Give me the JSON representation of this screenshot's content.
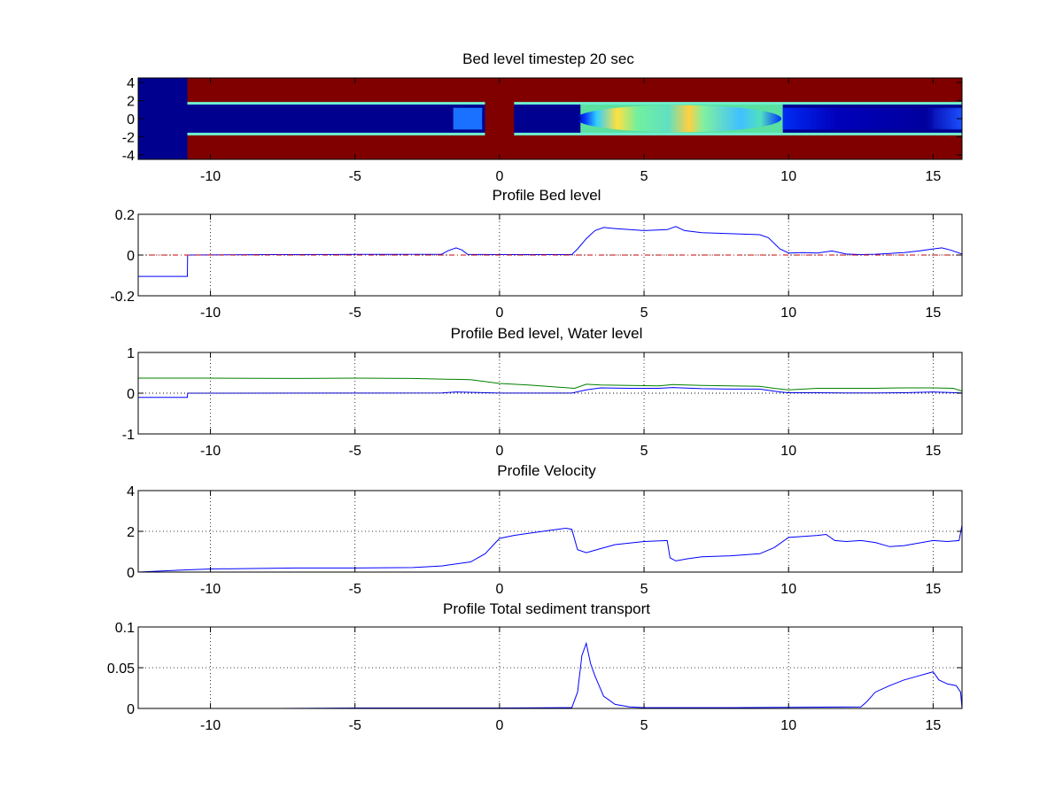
{
  "figure_title": "Bed level timestep 20 sec",
  "chart_data": [
    {
      "type": "heatmap",
      "title": "Bed level timestep 20 sec",
      "xlim": [
        -12.5,
        16
      ],
      "ylim": [
        -4.5,
        4.5
      ],
      "xticks": [
        -10,
        -5,
        0,
        5,
        10,
        15
      ],
      "yticks": [
        4,
        2,
        0,
        -2,
        -4
      ],
      "grid": false,
      "colormap": "jet",
      "description_regions": [
        {
          "x": [
            -12.5,
            -10.8
          ],
          "y": [
            -4.5,
            4.5
          ],
          "level": "low",
          "color": "#00008f"
        },
        {
          "x": [
            -10.8,
            16
          ],
          "y": [
            1.7,
            4.5
          ],
          "level": "high",
          "color": "#800000"
        },
        {
          "x": [
            -10.8,
            16
          ],
          "y": [
            -4.5,
            -1.7
          ],
          "level": "high",
          "color": "#800000"
        },
        {
          "x": [
            -0.5,
            0.5
          ],
          "y": [
            -4.5,
            4.5
          ],
          "level": "high",
          "color": "#800000"
        },
        {
          "x": [
            -10.8,
            16
          ],
          "y": [
            -1.7,
            1.7
          ],
          "level": "low",
          "color": "#00008f"
        },
        {
          "x": [
            2.8,
            9.8
          ],
          "y": [
            -1.6,
            1.6
          ],
          "level": "mid",
          "color": "#5ae0a0"
        },
        {
          "x": [
            -1.6,
            -0.6
          ],
          "y": [
            -1.2,
            1.2
          ],
          "level": "mid-low",
          "color": "#1a70ff"
        },
        {
          "x": [
            15,
            16
          ],
          "y": [
            -1.0,
            1.0
          ],
          "level": "mid-low",
          "color": "#2244ff"
        }
      ]
    },
    {
      "type": "line",
      "title": "Profile Bed level",
      "xlim": [
        -12.5,
        16
      ],
      "ylim": [
        -0.2,
        0.2
      ],
      "xticks": [
        -10,
        -5,
        0,
        5,
        10,
        15
      ],
      "yticks": [
        0.2,
        0,
        -0.2
      ],
      "ytick_labels": [
        "0.2",
        "0",
        "-0.2"
      ],
      "grid": true,
      "series": [
        {
          "color": "#0000ff",
          "style": "solid",
          "x": [
            -12.5,
            -10.8,
            -10.79,
            -8,
            -5,
            -2,
            -1.8,
            -1.5,
            -1.3,
            -1.1,
            0,
            2.5,
            2.7,
            3.0,
            3.3,
            3.6,
            4.0,
            5.0,
            5.8,
            6.1,
            6.4,
            7.0,
            8.0,
            9.0,
            9.3,
            9.7,
            10.0,
            10.5,
            11.0,
            11.5,
            12.0,
            12.5,
            13.0,
            13.5,
            14.0,
            14.5,
            15.0,
            15.3,
            15.6,
            16.0
          ],
          "y": [
            -0.105,
            -0.105,
            0.0,
            0.002,
            0.003,
            0.004,
            0.02,
            0.035,
            0.025,
            0.003,
            0.002,
            0.002,
            0.03,
            0.08,
            0.12,
            0.135,
            0.13,
            0.12,
            0.125,
            0.14,
            0.12,
            0.11,
            0.105,
            0.1,
            0.085,
            0.03,
            0.01,
            0.012,
            0.01,
            0.02,
            0.005,
            0.002,
            0.004,
            0.008,
            0.012,
            0.02,
            0.03,
            0.035,
            0.025,
            0.005
          ]
        },
        {
          "color": "#cc0000",
          "style": "dashdot",
          "x": [
            -12.5,
            16
          ],
          "y": [
            0,
            0
          ]
        }
      ]
    },
    {
      "type": "line",
      "title": "Profile Bed level, Water level",
      "xlim": [
        -12.5,
        16
      ],
      "ylim": [
        -1,
        1
      ],
      "xticks": [
        -10,
        -5,
        0,
        5,
        10,
        15
      ],
      "yticks": [
        1,
        0,
        -1
      ],
      "ytick_labels": [
        "1",
        "0",
        "-1"
      ],
      "grid": true,
      "series": [
        {
          "color": "#008000",
          "style": "solid",
          "x": [
            -12.5,
            -10,
            -7,
            -5,
            -3,
            -1,
            0,
            1,
            2,
            2.6,
            3.0,
            3.5,
            4.5,
            5.5,
            6.0,
            7,
            8,
            9,
            9.5,
            10,
            11,
            12,
            13,
            14,
            15,
            15.7,
            16
          ],
          "y": [
            0.37,
            0.37,
            0.36,
            0.37,
            0.36,
            0.33,
            0.24,
            0.2,
            0.15,
            0.12,
            0.22,
            0.2,
            0.19,
            0.18,
            0.21,
            0.19,
            0.18,
            0.17,
            0.12,
            0.08,
            0.12,
            0.12,
            0.12,
            0.13,
            0.13,
            0.12,
            0.05
          ]
        },
        {
          "color": "#0000ff",
          "style": "solid",
          "x": [
            -12.5,
            -10.8,
            -10.79,
            -5,
            -2,
            -1.5,
            0,
            2.5,
            3.0,
            3.5,
            4.5,
            5.5,
            6.0,
            7,
            8,
            9,
            9.7,
            10,
            11,
            12,
            13,
            14,
            15,
            16
          ],
          "y": [
            -0.105,
            -0.105,
            0.0,
            0.003,
            0.004,
            0.03,
            0.002,
            0.002,
            0.08,
            0.13,
            0.12,
            0.12,
            0.14,
            0.11,
            0.1,
            0.1,
            0.03,
            0.01,
            0.01,
            0.005,
            0.005,
            0.01,
            0.03,
            0.005
          ]
        },
        {
          "color": "#000000",
          "style": "dotted",
          "x": [
            -12.5,
            16
          ],
          "y": [
            0,
            0
          ]
        }
      ]
    },
    {
      "type": "line",
      "title": "Profile Velocity",
      "xlim": [
        -12.5,
        16
      ],
      "ylim": [
        0,
        4
      ],
      "xticks": [
        -10,
        -5,
        0,
        5,
        10,
        15
      ],
      "yticks": [
        4,
        2,
        0
      ],
      "ytick_labels": [
        "4",
        "2",
        "0"
      ],
      "grid": true,
      "series": [
        {
          "color": "#0000ff",
          "style": "solid",
          "x": [
            -12.5,
            -11,
            -10,
            -7,
            -5,
            -3,
            -2,
            -1,
            -0.5,
            0,
            0.5,
            1,
            2,
            2.3,
            2.5,
            2.7,
            3.0,
            3.5,
            4,
            5,
            5.8,
            5.9,
            6.1,
            6.5,
            7,
            8,
            9,
            9.5,
            10,
            10.5,
            11,
            11.3,
            11.6,
            12,
            12.5,
            13,
            13.5,
            14,
            15,
            15.5,
            15.9,
            16
          ],
          "y": [
            0.0,
            0.1,
            0.15,
            0.2,
            0.2,
            0.22,
            0.3,
            0.5,
            0.9,
            1.65,
            1.8,
            1.9,
            2.1,
            2.15,
            2.1,
            1.1,
            0.95,
            1.15,
            1.35,
            1.5,
            1.55,
            0.7,
            0.55,
            0.65,
            0.75,
            0.8,
            0.9,
            1.2,
            1.7,
            1.75,
            1.8,
            1.85,
            1.55,
            1.5,
            1.55,
            1.45,
            1.25,
            1.3,
            1.55,
            1.5,
            1.55,
            2.3
          ]
        }
      ]
    },
    {
      "type": "line",
      "title": "Profile Total sediment transport",
      "xlim": [
        -12.5,
        16
      ],
      "ylim": [
        0,
        0.1
      ],
      "xticks": [
        -10,
        -5,
        0,
        5,
        10,
        15
      ],
      "yticks": [
        0.1,
        0.05,
        0
      ],
      "ytick_labels": [
        "0.1",
        "0.05",
        "0"
      ],
      "grid": true,
      "series": [
        {
          "color": "#0000ff",
          "style": "solid",
          "x": [
            -7.6,
            -5,
            0,
            2.5,
            2.7,
            2.85,
            3.0,
            3.15,
            3.3,
            3.6,
            4.0,
            4.5,
            5,
            8,
            12.5,
            12.7,
            13.0,
            13.5,
            14.0,
            14.5,
            15.0,
            15.2,
            15.5,
            15.8,
            15.95,
            16.0
          ],
          "y": [
            0.0,
            0.0005,
            0.0005,
            0.001,
            0.02,
            0.065,
            0.08,
            0.055,
            0.04,
            0.015,
            0.005,
            0.002,
            0.001,
            0.001,
            0.002,
            0.008,
            0.02,
            0.028,
            0.035,
            0.04,
            0.045,
            0.035,
            0.03,
            0.028,
            0.02,
            0.0
          ]
        }
      ]
    }
  ]
}
